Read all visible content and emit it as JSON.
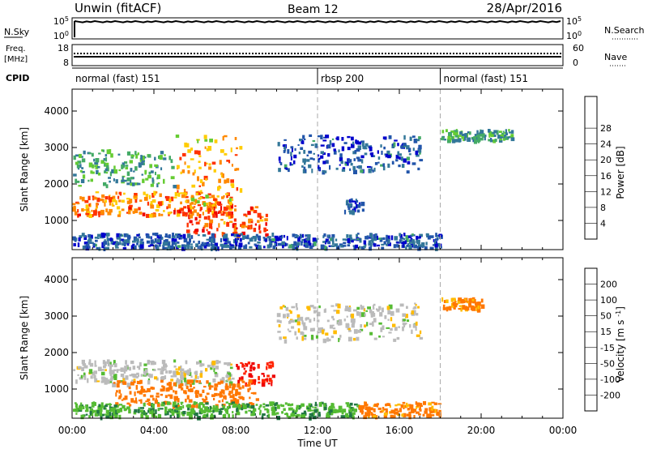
{
  "header": {
    "station": "Unwin (fitACF)",
    "beam": "Beam 12",
    "date": "28/Apr/2016"
  },
  "aux_panels": {
    "nsky_label": "N.Sky",
    "nsky_tick_high": "10^5",
    "nsky_tick_low": "10^0",
    "nsearch_label": "N.Search",
    "nsearch_tick_high": "10^5",
    "nsearch_tick_low": "10^0",
    "freq_label": "Freq.",
    "freq_unit": "[MHz]",
    "freq_tick_high": "18",
    "freq_tick_low": "8",
    "nave_label": "Nave",
    "nave_tick_high": "60",
    "nave_tick_low": "0",
    "cpid_label": "CPID"
  },
  "cpid_segments": [
    {
      "label": "normal (fast) 151",
      "start_hour": 0,
      "end_hour": 12
    },
    {
      "label": "rbsp 200",
      "start_hour": 12,
      "end_hour": 18
    },
    {
      "label": "normal (fast) 151",
      "start_hour": 18,
      "end_hour": 24
    }
  ],
  "chart_data": [
    {
      "type": "heatmap",
      "title": "Power",
      "xlabel": "Time UT",
      "ylabel": "Slant Range [km]",
      "xlim": [
        0,
        24
      ],
      "ylim": [
        200,
        4600
      ],
      "x_ticks": [
        "00:00",
        "04:00",
        "08:00",
        "12:00",
        "16:00",
        "20:00",
        "00:00"
      ],
      "y_ticks": [
        1000,
        2000,
        3000,
        4000
      ],
      "colorbar": {
        "label": "Power [dB]",
        "ticks": [
          4,
          8,
          12,
          16,
          20,
          24,
          28
        ],
        "range": [
          0,
          32
        ]
      },
      "features": [
        {
          "name": "band-1200-1700",
          "t": [
            0,
            7.8
          ],
          "range_km": [
            1100,
            1750
          ],
          "value": 24
        },
        {
          "name": "arc-to-3300",
          "t": [
            5.0,
            8.2
          ],
          "range_km": [
            1400,
            3300
          ],
          "value": 22
        },
        {
          "name": "lower-branch",
          "t": [
            5.5,
            9.5
          ],
          "range_km": [
            550,
            1350
          ],
          "value": 26
        },
        {
          "name": "scatter-2500",
          "t": [
            0,
            5.0
          ],
          "range_km": [
            1900,
            2900
          ],
          "value": 12
        },
        {
          "name": "arc-3000-2400",
          "t": [
            10.0,
            17.0
          ],
          "range_km": [
            2300,
            3300
          ],
          "value": 6
        },
        {
          "name": "patch-1300",
          "t": [
            13.3,
            14.2
          ],
          "range_km": [
            1200,
            1600
          ],
          "value": 5
        },
        {
          "name": "ground-band-200-600",
          "t": [
            0,
            18.0
          ],
          "range_km": [
            200,
            600
          ],
          "value": 6
        },
        {
          "name": "evening-3300",
          "t": [
            18.0,
            21.5
          ],
          "range_km": [
            3150,
            3450
          ],
          "value": 12
        }
      ]
    },
    {
      "type": "heatmap",
      "title": "Velocity",
      "xlabel": "Time UT",
      "ylabel": "Slant Range [km]",
      "xlim": [
        0,
        24
      ],
      "ylim": [
        200,
        4600
      ],
      "x_ticks": [
        "00:00",
        "04:00",
        "08:00",
        "12:00",
        "16:00",
        "20:00",
        "00:00"
      ],
      "y_ticks": [
        1000,
        2000,
        3000,
        4000
      ],
      "colorbar": {
        "label": "Velocity [m s^-1]",
        "ticks": [
          "200",
          "100",
          "50",
          "15",
          "-15",
          "-50",
          "-100",
          "-200"
        ]
      },
      "features": [
        {
          "name": "grey-band-1200-1700",
          "t": [
            0,
            7.8
          ],
          "range_km": [
            1100,
            1750
          ],
          "value": 0
        },
        {
          "name": "red-patch-1200",
          "t": [
            8.0,
            9.8
          ],
          "range_km": [
            1100,
            1700
          ],
          "value": -200
        },
        {
          "name": "orange-lower",
          "t": [
            2.0,
            9.0
          ],
          "range_km": [
            500,
            1200
          ],
          "value": -70
        },
        {
          "name": "grey-arc-3000-2400",
          "t": [
            10.0,
            17.0
          ],
          "range_km": [
            2300,
            3300
          ],
          "value": 0
        },
        {
          "name": "green-ground-band",
          "t": [
            0,
            14.0
          ],
          "range_km": [
            200,
            600
          ],
          "value": 40
        },
        {
          "name": "orange-ground-band",
          "t": [
            14.0,
            18.0
          ],
          "range_km": [
            200,
            600
          ],
          "value": -60
        },
        {
          "name": "orange-evening-3300",
          "t": [
            18.0,
            20.0
          ],
          "range_km": [
            3150,
            3450
          ],
          "value": -60
        }
      ]
    }
  ],
  "colors": {
    "colorbar_power": [
      "#0000cc",
      "#2255aa",
      "#337799",
      "#44aa66",
      "#66cc33",
      "#ffcc00",
      "#ff8800",
      "#ff3300",
      "#ee0000"
    ],
    "colorbar_velocity": [
      "#0000aa",
      "#2244aa",
      "#227744",
      "#55bb33",
      "#bbbbbb",
      "#ffbb00",
      "#ff7700",
      "#ff2200",
      "#ee0000"
    ],
    "cpid_divider": "#aaaaaa"
  }
}
